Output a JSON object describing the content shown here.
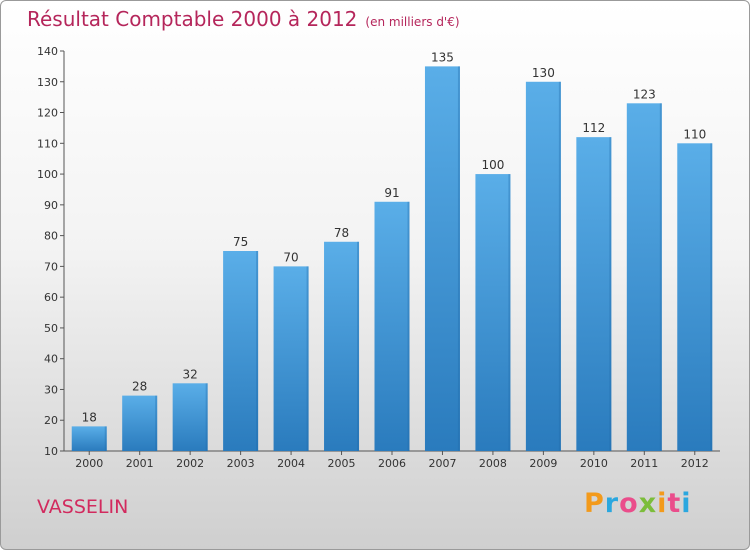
{
  "title": "Résultat Comptable 2000 à 2012",
  "subtitle": "(en milliers d'€)",
  "commune": "VASSELIN",
  "logo_text": "Proxiti",
  "colors": {
    "bar_top": "#5aaee8",
    "bar_bottom": "#2a7bbd",
    "title": "#b5265b"
  },
  "chart_data": {
    "type": "bar",
    "categories": [
      "2000",
      "2001",
      "2002",
      "2003",
      "2004",
      "2005",
      "2006",
      "2007",
      "2008",
      "2009",
      "2010",
      "2011",
      "2012"
    ],
    "values": [
      18,
      28,
      32,
      75,
      70,
      78,
      91,
      135,
      100,
      130,
      112,
      123,
      110
    ],
    "ylim": [
      10,
      140
    ],
    "yticks": [
      10,
      20,
      30,
      40,
      50,
      60,
      70,
      80,
      90,
      100,
      110,
      120,
      130,
      140
    ],
    "grid": false,
    "title": "Résultat Comptable 2000 à 2012",
    "xlabel": "",
    "ylabel": ""
  }
}
